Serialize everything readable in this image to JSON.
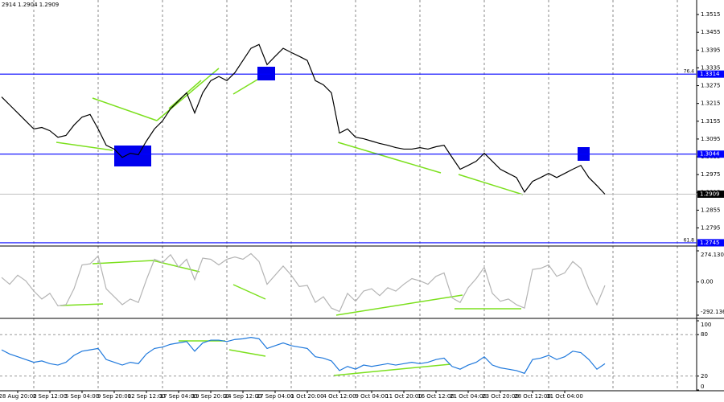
{
  "header": "2914 1.2904 1.2909",
  "chart_data": [
    {
      "type": "line",
      "name": "price",
      "categories": [
        null,
        null,
        "28 Aug 20:00",
        null,
        null,
        null,
        "2 Sep 12:00",
        null,
        null,
        null,
        "5 Sep 04:00",
        null,
        null,
        null,
        "9 Sep 20:00",
        null,
        null,
        null,
        "12 Sep 12:00",
        null,
        null,
        null,
        "17 Sep 04:00",
        null,
        null,
        null,
        "19 Sep 20:00",
        null,
        null,
        null,
        "24 Sep 12:00",
        null,
        null,
        null,
        "27 Sep 04:00",
        null,
        null,
        null,
        "1 Oct 20:00",
        null,
        null,
        null,
        "4 Oct 12:00",
        null,
        null,
        null,
        "9 Oct 04:00",
        null,
        null,
        null,
        "11 Oct 20:00",
        null,
        null,
        null,
        "16 Oct 12:00",
        null,
        null,
        null,
        "21 Oct 04:00",
        null,
        null,
        null,
        "23 Oct 20:00",
        null,
        null,
        null,
        "28 Oct 12:00",
        null,
        null,
        null,
        "31 Oct 04:00",
        null,
        null,
        null,
        null,
        null
      ],
      "series": [
        {
          "color": "#000000",
          "values": [
            1.3237,
            1.321,
            1.3183,
            1.3156,
            1.3129,
            1.3134,
            1.3123,
            1.3101,
            1.3107,
            1.3142,
            1.3169,
            1.3178,
            1.3129,
            1.3074,
            1.3061,
            1.3033,
            1.3047,
            1.3042,
            1.3088,
            1.3129,
            1.3156,
            1.3197,
            1.3224,
            1.3251,
            1.3183,
            1.3251,
            1.3292,
            1.3306,
            1.3292,
            1.3319,
            1.336,
            1.3401,
            1.3414,
            1.3346,
            1.3374,
            1.3401,
            1.3387,
            1.3374,
            1.336,
            1.3292,
            1.3278,
            1.3251,
            1.3115,
            1.3129,
            1.3101,
            1.3096,
            1.3088,
            1.308,
            1.3074,
            1.3066,
            1.3061,
            1.3061,
            1.3066,
            1.3061,
            1.3069,
            1.3074,
            1.3033,
            1.2993,
            1.3006,
            1.302,
            1.3047,
            1.302,
            1.2993,
            1.2979,
            1.2965,
            1.2916,
            1.2952,
            1.2965,
            1.2979,
            1.2965,
            1.2979,
            1.2993,
            1.3006,
            1.2965,
            1.2938,
            1.2909
          ]
        }
      ],
      "ylim": [
        1.2734,
        1.3564
      ],
      "yticks": [
        1.3515,
        1.3455,
        1.3395,
        1.3335,
        1.3275,
        1.3215,
        1.3155,
        1.3095,
        1.3035,
        1.2975,
        1.2915,
        1.2855,
        1.2795
      ],
      "levels": [
        {
          "value": 1.3314,
          "name": "76.4",
          "color": "#0000ff"
        },
        {
          "value": 1.3044,
          "color": "#0000ff"
        },
        {
          "value": 1.2745,
          "name": "61.8",
          "color": "#0000ff"
        }
      ],
      "last_price": 1.2909
    },
    {
      "type": "line",
      "name": "cci",
      "series": [
        {
          "color": "#b4b4b4",
          "values": [
            40,
            -20,
            60,
            10,
            -80,
            -150,
            -100,
            -210,
            -200,
            -60,
            150,
            160,
            230,
            -60,
            -130,
            -200,
            -150,
            -180,
            20,
            200,
            170,
            240,
            130,
            200,
            20,
            210,
            200,
            150,
            200,
            220,
            200,
            250,
            180,
            -20,
            60,
            140,
            60,
            -40,
            -30,
            -180,
            -130,
            -230,
            -260,
            -100,
            -170,
            -80,
            -60,
            -120,
            -50,
            -80,
            -20,
            30,
            10,
            -20,
            50,
            80,
            -140,
            -180,
            -50,
            30,
            130,
            -100,
            -170,
            -150,
            -200,
            -230,
            110,
            120,
            150,
            50,
            80,
            180,
            120,
            -60,
            -200,
            -30
          ]
        }
      ],
      "ylim": [
        -292.136,
        274.1308
      ],
      "yticks": [
        274.1308,
        {
          "value": 0,
          "label": "0.00"
        },
        -292.136
      ]
    },
    {
      "type": "line",
      "name": "rsi",
      "series": [
        {
          "color": "#1e78dc",
          "values": [
            58,
            52,
            48,
            44,
            40,
            42,
            38,
            36,
            40,
            50,
            56,
            58,
            60,
            44,
            40,
            36,
            40,
            38,
            52,
            60,
            62,
            66,
            68,
            70,
            56,
            68,
            72,
            72,
            70,
            73,
            74,
            76,
            74,
            60,
            64,
            68,
            64,
            62,
            60,
            48,
            46,
            42,
            28,
            34,
            30,
            36,
            34,
            36,
            38,
            36,
            38,
            40,
            38,
            40,
            44,
            46,
            34,
            30,
            36,
            40,
            48,
            36,
            32,
            30,
            28,
            24,
            44,
            46,
            50,
            44,
            48,
            56,
            54,
            44,
            30,
            38
          ]
        }
      ],
      "ylim": [
        0,
        100
      ],
      "yticks": [
        100,
        80,
        20,
        0
      ],
      "levels": [
        {
          "value": 80
        },
        {
          "value": 20
        }
      ]
    }
  ]
}
